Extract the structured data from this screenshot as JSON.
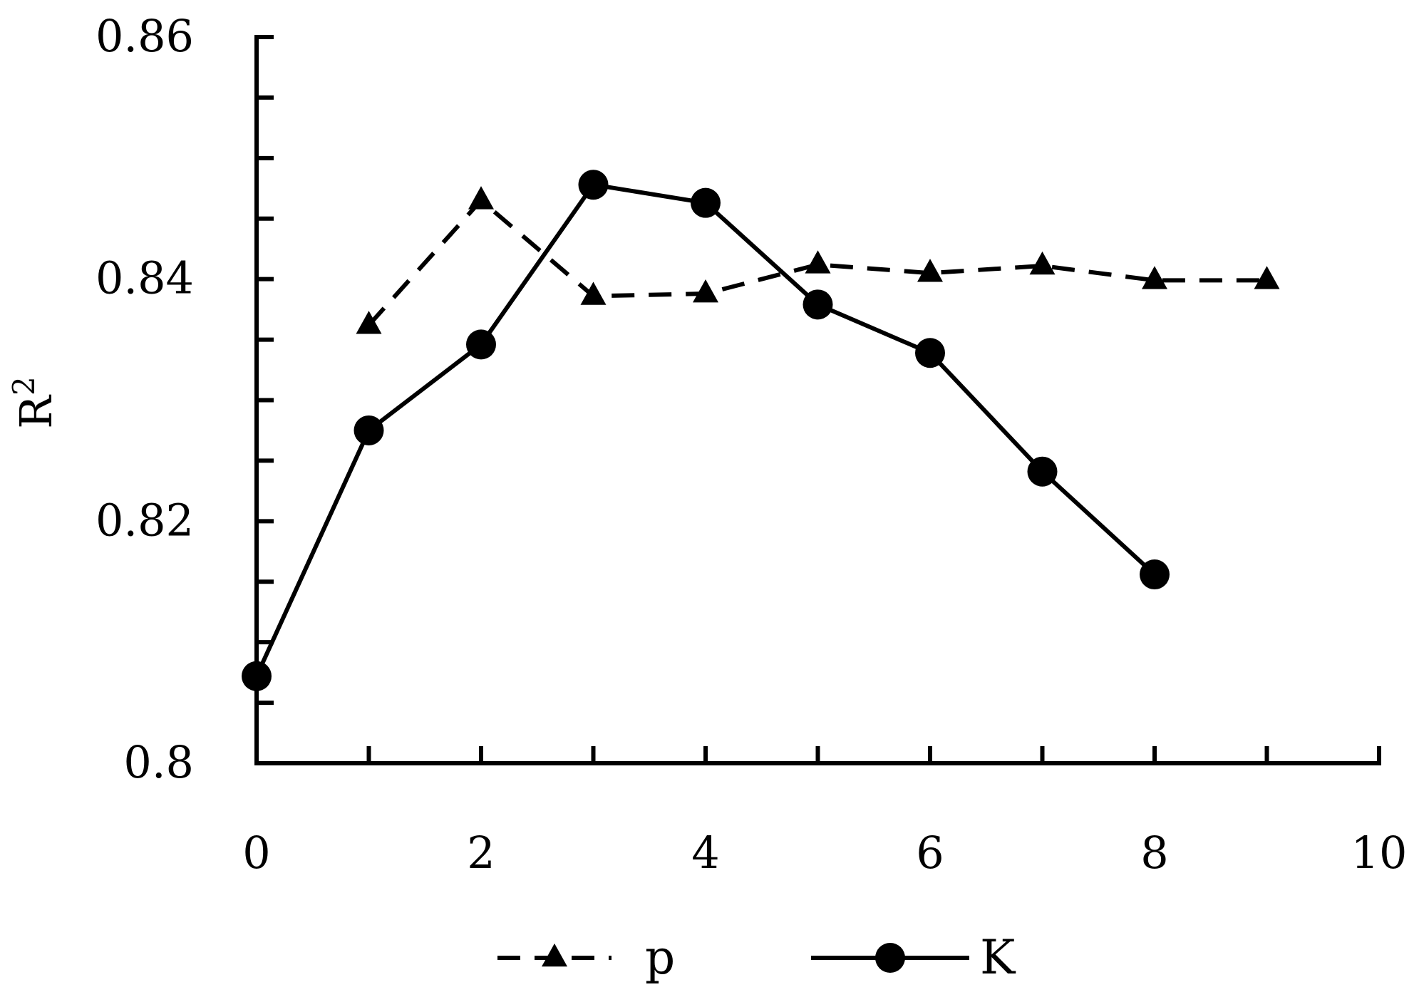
{
  "chart_data": {
    "type": "line",
    "title": "",
    "xlabel": "",
    "ylabel": "R",
    "ylabel_superscript": "2",
    "xlim": [
      0,
      10
    ],
    "ylim": [
      0.8,
      0.86
    ],
    "x_ticks": [
      0,
      2,
      4,
      6,
      8,
      10
    ],
    "x_tick_labels": [
      "0",
      "2",
      "4",
      "6",
      "8",
      "10"
    ],
    "x_minor_ticks": [
      1,
      3,
      5,
      7,
      9
    ],
    "y_ticks": [
      0.8,
      0.82,
      0.84,
      0.86
    ],
    "y_tick_labels": [
      "0.8",
      "0.82",
      "0.84",
      "0.86"
    ],
    "y_minor_ticks": [
      0.805,
      0.81,
      0.815,
      0.825,
      0.83,
      0.835,
      0.845,
      0.85,
      0.855
    ],
    "grid": false,
    "legend_position": "bottom",
    "series": [
      {
        "name": "p",
        "line_style": "dashed",
        "marker": "triangle",
        "color": "#000000",
        "x": [
          1,
          2,
          3,
          4,
          5,
          6,
          7,
          8,
          9
        ],
        "y": [
          0.8362,
          0.8465,
          0.8386,
          0.8388,
          0.8412,
          0.8405,
          0.8411,
          0.8399,
          0.8399
        ]
      },
      {
        "name": "K",
        "line_style": "solid",
        "marker": "circle",
        "color": "#000000",
        "x": [
          0,
          1,
          2,
          3,
          4,
          5,
          6,
          7,
          8
        ],
        "y": [
          0.8072,
          0.8275,
          0.8346,
          0.8478,
          0.8463,
          0.8379,
          0.8339,
          0.8241,
          0.8156
        ]
      }
    ]
  }
}
